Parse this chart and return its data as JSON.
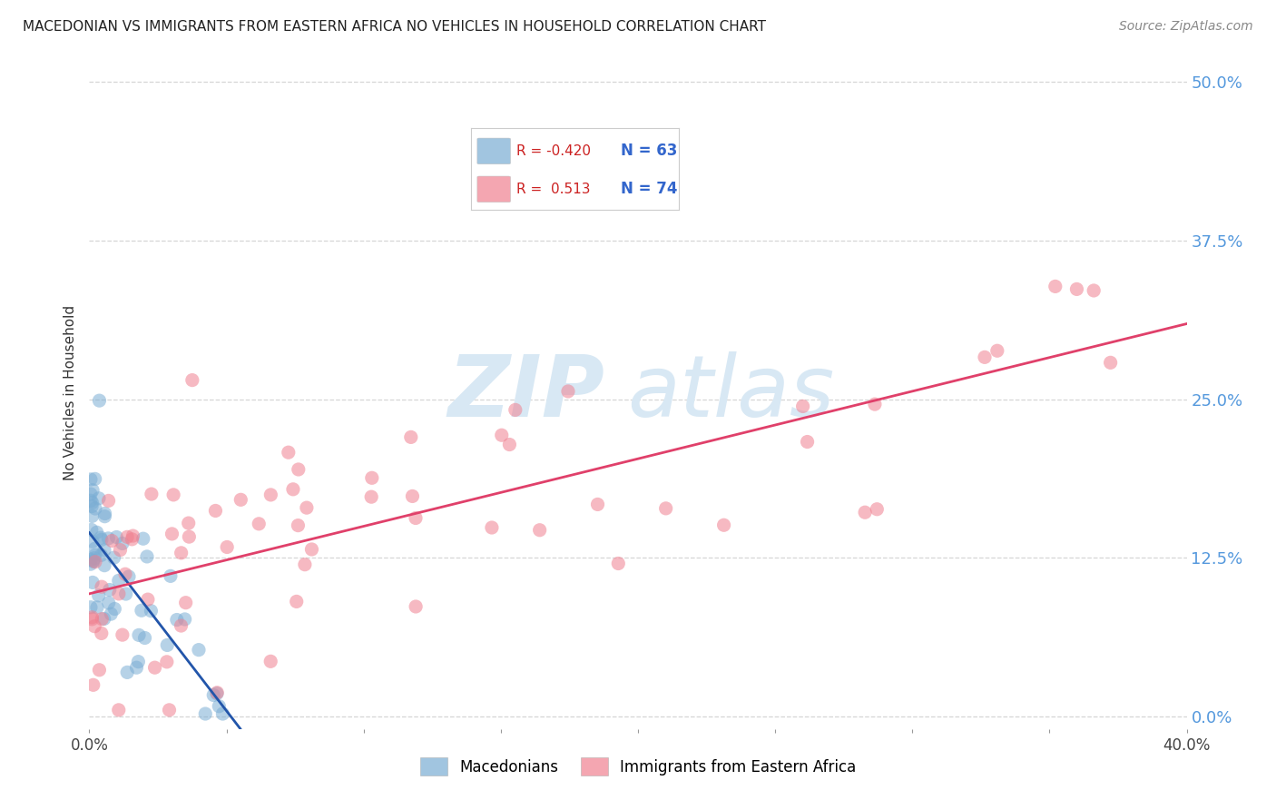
{
  "title": "MACEDONIAN VS IMMIGRANTS FROM EASTERN AFRICA NO VEHICLES IN HOUSEHOLD CORRELATION CHART",
  "source": "Source: ZipAtlas.com",
  "ylabel": "No Vehicles in Household",
  "ytick_values": [
    0.0,
    12.5,
    25.0,
    37.5,
    50.0
  ],
  "xlim": [
    0.0,
    40.0
  ],
  "ylim": [
    -1.0,
    52.0
  ],
  "legend_r_macedonian": "-0.420",
  "legend_n_macedonian": "63",
  "legend_r_eastern_africa": "0.513",
  "legend_n_eastern_africa": "74",
  "macedonian_color": "#7aadd4",
  "eastern_africa_color": "#f08090",
  "trendline_macedonian_color": "#2255aa",
  "trendline_eastern_africa_color": "#e0406a",
  "watermark_zip": "ZIP",
  "watermark_atlas": "atlas",
  "watermark_color": "#d8e8f4",
  "background_color": "#ffffff",
  "grid_color": "#cccccc",
  "right_tick_color": "#5599dd",
  "mac_seed": 42,
  "ea_seed": 99
}
